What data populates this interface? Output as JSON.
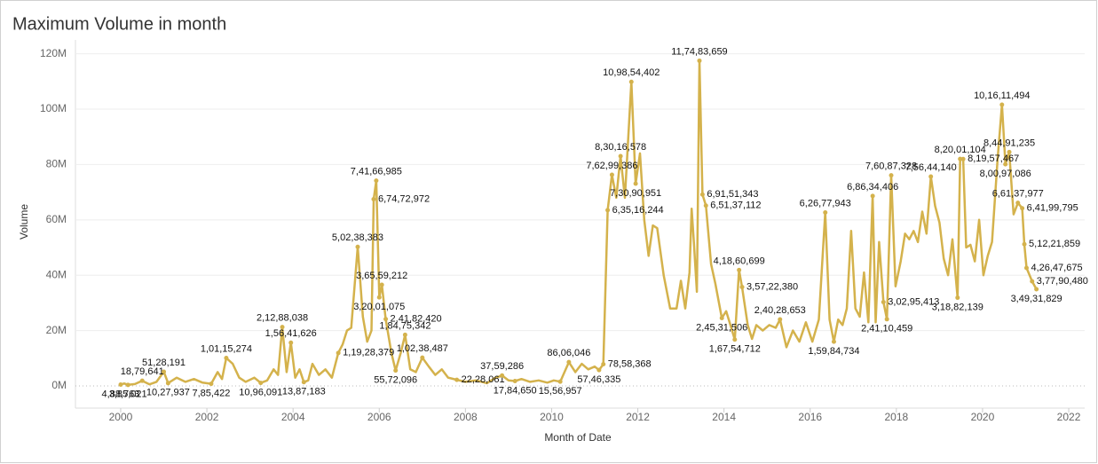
{
  "chart_data": {
    "type": "line",
    "title": "Maximum Volume in month",
    "x_label": "Month of Date",
    "y_label": "Volume",
    "color": "#d4b24c",
    "grid": true,
    "xlim": [
      1998.95,
      2022.37
    ],
    "xticks": [
      2000,
      2002,
      2004,
      2006,
      2008,
      2010,
      2012,
      2014,
      2016,
      2018,
      2020,
      2022
    ],
    "ylim": [
      -8000000,
      125000000
    ],
    "yticks": [
      {
        "value": 0,
        "label": "0M"
      },
      {
        "value": 20000000,
        "label": "20M"
      },
      {
        "value": 40000000,
        "label": "40M"
      },
      {
        "value": 60000000,
        "label": "60M"
      },
      {
        "value": 80000000,
        "label": "80M"
      },
      {
        "value": 100000000,
        "label": "100M"
      },
      {
        "value": 120000000,
        "label": "120M"
      }
    ],
    "series": [
      {
        "name": "Volume",
        "color": "#d4b24c",
        "x": [
          2000.0,
          2000.08,
          2000.17,
          2000.33,
          2000.5,
          2000.67,
          2000.83,
          2001.0,
          2001.1,
          2001.3,
          2001.5,
          2001.7,
          2001.9,
          2002.1,
          2002.25,
          2002.35,
          2002.45,
          2002.6,
          2002.75,
          2002.9,
          2003.1,
          2003.25,
          2003.4,
          2003.55,
          2003.65,
          2003.75,
          2003.85,
          2003.95,
          2004.05,
          2004.15,
          2004.25,
          2004.35,
          2004.45,
          2004.6,
          2004.75,
          2004.9,
          2005.05,
          2005.15,
          2005.25,
          2005.35,
          2005.5,
          2005.62,
          2005.72,
          2005.82,
          2005.87,
          2005.93,
          2006.0,
          2006.06,
          2006.15,
          2006.28,
          2006.38,
          2006.5,
          2006.6,
          2006.72,
          2006.85,
          2007.0,
          2007.15,
          2007.3,
          2007.45,
          2007.6,
          2007.8,
          2008.0,
          2008.25,
          2008.5,
          2008.7,
          2008.85,
          2009.0,
          2009.15,
          2009.3,
          2009.5,
          2009.7,
          2009.9,
          2010.05,
          2010.2,
          2010.4,
          2010.55,
          2010.7,
          2010.85,
          2011.0,
          2011.1,
          2011.2,
          2011.3,
          2011.4,
          2011.5,
          2011.6,
          2011.7,
          2011.85,
          2011.95,
          2012.05,
          2012.15,
          2012.25,
          2012.35,
          2012.45,
          2012.6,
          2012.75,
          2012.9,
          2013.0,
          2013.1,
          2013.2,
          2013.25,
          2013.3,
          2013.37,
          2013.43,
          2013.5,
          2013.58,
          2013.7,
          2013.8,
          2013.95,
          2014.05,
          2014.15,
          2014.25,
          2014.35,
          2014.42,
          2014.55,
          2014.65,
          2014.75,
          2014.9,
          2015.05,
          2015.2,
          2015.3,
          2015.45,
          2015.6,
          2015.75,
          2015.9,
          2016.05,
          2016.2,
          2016.35,
          2016.45,
          2016.55,
          2016.65,
          2016.75,
          2016.85,
          2016.95,
          2017.05,
          2017.15,
          2017.25,
          2017.35,
          2017.45,
          2017.52,
          2017.6,
          2017.7,
          2017.78,
          2017.88,
          2017.98,
          2018.1,
          2018.2,
          2018.3,
          2018.4,
          2018.5,
          2018.6,
          2018.7,
          2018.8,
          2018.9,
          2019.0,
          2019.1,
          2019.2,
          2019.3,
          2019.42,
          2019.48,
          2019.55,
          2019.62,
          2019.72,
          2019.82,
          2019.92,
          2020.02,
          2020.12,
          2020.22,
          2020.35,
          2020.45,
          2020.53,
          2020.62,
          2020.72,
          2020.82,
          2020.92,
          2020.97,
          2021.02,
          2021.15,
          2021.25
        ],
        "values": [
          488763,
          900000,
          385021,
          700000,
          1879641,
          600000,
          1500000,
          5128191,
          1027937,
          3000000,
          1500000,
          2500000,
          1200000,
          785422,
          5000000,
          2500000,
          10115274,
          8000000,
          3000000,
          1500000,
          3000000,
          1096091,
          2000000,
          6000000,
          4000000,
          21288038,
          5000000,
          15641626,
          3000000,
          6000000,
          1387183,
          2000000,
          8000000,
          4000000,
          6000000,
          3000000,
          11928379,
          15000000,
          20000000,
          21000000,
          50238383,
          25000000,
          16000000,
          20000000,
          67472972,
          74166985,
          32001075,
          36559212,
          24182420,
          12000000,
          5572096,
          12000000,
          18475342,
          6000000,
          5000000,
          10238487,
          7000000,
          4000000,
          6000000,
          3000000,
          2228061,
          1500000,
          2000000,
          1000000,
          3000000,
          3759286,
          2000000,
          1784650,
          2500000,
          1500000,
          2000000,
          1200000,
          2000000,
          1556957,
          8606046,
          5000000,
          8000000,
          6000000,
          7000000,
          5746335,
          7858368,
          63516244,
          76299386,
          68000000,
          83016578,
          68000000,
          109854402,
          73090951,
          84000000,
          60000000,
          47000000,
          58000000,
          57000000,
          40000000,
          28000000,
          28000000,
          38000000,
          28000000,
          41000000,
          64000000,
          52000000,
          34000000,
          117483659,
          69151343,
          65137112,
          44000000,
          37000000,
          24531506,
          27000000,
          22000000,
          16754712,
          41860699,
          35722380,
          22000000,
          17000000,
          22000000,
          20000000,
          22000000,
          21000000,
          24028653,
          14000000,
          20000000,
          16000000,
          23000000,
          16000000,
          24000000,
          62677943,
          24000000,
          15984734,
          24000000,
          22000000,
          28000000,
          56000000,
          28000000,
          25000000,
          41000000,
          23000000,
          68634406,
          23000000,
          52000000,
          30295413,
          24110459,
          76087328,
          36000000,
          45000000,
          55000000,
          53000000,
          56000000,
          52000000,
          63000000,
          55000000,
          75644140,
          65000000,
          59000000,
          46000000,
          40000000,
          53000000,
          31882139,
          82001104,
          81957467,
          50000000,
          51000000,
          45000000,
          60000000,
          40000000,
          47000000,
          52000000,
          82000000,
          101611494,
          80097086,
          84491235,
          62000000,
          66137977,
          64199795,
          51221859,
          42647675,
          37790480,
          34931829
        ],
        "value_labels": [
          "4,88,763",
          null,
          "3,85,021",
          null,
          "18,79,641",
          null,
          null,
          "51,28,191",
          "10,27,937",
          null,
          null,
          null,
          null,
          "7,85,422",
          null,
          null,
          "1,01,15,274",
          null,
          null,
          null,
          null,
          "10,96,091",
          null,
          null,
          null,
          "2,12,88,038",
          null,
          "1,56,41,626",
          null,
          null,
          "13,87,183",
          null,
          null,
          null,
          null,
          null,
          "1,19,28,379",
          null,
          null,
          null,
          "5,02,38,383",
          null,
          null,
          null,
          "6,74,72,972",
          "7,41,66,985",
          "3,20,01,075",
          "3,65,59,212",
          "2,41,82,420",
          null,
          "55,72,096",
          null,
          "1,84,75,342",
          null,
          null,
          "1,02,38,487",
          null,
          null,
          null,
          null,
          "22,28,061",
          null,
          null,
          null,
          null,
          "37,59,286",
          null,
          "17,84,650",
          null,
          null,
          null,
          null,
          null,
          "15,56,957",
          "86,06,046",
          null,
          null,
          null,
          null,
          "57,46,335",
          "78,58,368",
          "6,35,16,244",
          "7,62,99,386",
          null,
          "8,30,16,578",
          null,
          "10,98,54,402",
          "7,30,90,951",
          null,
          null,
          null,
          null,
          null,
          null,
          null,
          null,
          null,
          null,
          null,
          null,
          null,
          null,
          "11,74,83,659",
          "6,91,51,343",
          "6,51,37,112",
          null,
          null,
          "2,45,31,506",
          null,
          null,
          "1,67,54,712",
          "4,18,60,699",
          "3,57,22,380",
          null,
          null,
          null,
          null,
          null,
          null,
          "2,40,28,653",
          null,
          null,
          null,
          null,
          null,
          null,
          "6,26,77,943",
          null,
          "1,59,84,734",
          null,
          null,
          null,
          null,
          null,
          null,
          null,
          null,
          "6,86,34,406",
          null,
          null,
          "3,02,95,413",
          "2,41,10,459",
          "7,60,87,328",
          null,
          null,
          null,
          null,
          null,
          null,
          null,
          null,
          "7,56,44,140",
          null,
          null,
          null,
          null,
          null,
          "3,18,82,139",
          "8,20,01,104",
          "8,19,57,467",
          null,
          null,
          null,
          null,
          null,
          null,
          null,
          null,
          "10,16,11,494",
          "8,00,97,086",
          "8,44,91,235",
          null,
          "6,61,37,977",
          "6,41,99,795",
          "5,12,21,859",
          "4,26,47,675",
          "3,77,90,480",
          "3,49,31,829"
        ]
      }
    ]
  }
}
